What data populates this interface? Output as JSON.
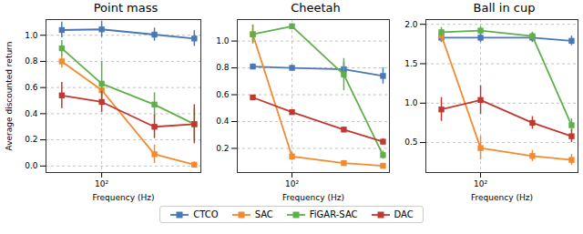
{
  "chart_data": [
    {
      "type": "line",
      "title": "Point mass",
      "x_label": "Frequency (Hz)",
      "y_label": "Average discounted return",
      "log": "x",
      "grid": true,
      "marker": "square",
      "legend": "bottom",
      "x": [
        50,
        100,
        250,
        500
      ],
      "xlim": [
        38,
        560
      ],
      "xticks": [
        {
          "value": 100,
          "label": "10²"
        }
      ],
      "ylim": [
        -0.05,
        1.12
      ],
      "yticks": [
        {
          "value": 0,
          "label": "0.0"
        },
        {
          "value": 0.2,
          "label": "0.2"
        },
        {
          "value": 0.4,
          "label": "0.4"
        },
        {
          "value": 0.6,
          "label": "0.6"
        },
        {
          "value": 0.8,
          "label": "0.8"
        },
        {
          "value": 1,
          "label": "1.0"
        }
      ],
      "series": [
        {
          "name": "CTCO",
          "color": "#4878b8",
          "values": [
            1.04,
            1.045,
            1.005,
            0.975
          ],
          "errors": [
            0.06,
            0.06,
            0.05,
            0.06
          ]
        },
        {
          "name": "SAC",
          "color": "#f28a30",
          "values": [
            0.8,
            0.58,
            0.09,
            0.01
          ],
          "errors": [
            0.05,
            0.05,
            0.07,
            0.02
          ]
        },
        {
          "name": "FiGAR-SAC",
          "color": "#5fb04a",
          "values": [
            0.9,
            0.63,
            0.47,
            0.32
          ],
          "errors": [
            0.06,
            0.17,
            0.09,
            0.12
          ]
        },
        {
          "name": "DAC",
          "color": "#c03830",
          "values": [
            0.54,
            0.49,
            0.3,
            0.32
          ],
          "errors": [
            0.1,
            0.08,
            0.09,
            0.15
          ]
        }
      ]
    },
    {
      "type": "line",
      "title": "Cheetah",
      "x_label": "Frequency (Hz)",
      "log": "x",
      "grid": true,
      "marker": "square",
      "x": [
        50,
        100,
        250,
        500
      ],
      "xlim": [
        38,
        560
      ],
      "xticks": [
        {
          "value": 100,
          "label": "10²"
        }
      ],
      "ylim": [
        0.02,
        1.16
      ],
      "yticks": [
        {
          "value": 0.2,
          "label": "0.2"
        },
        {
          "value": 0.4,
          "label": "0.4"
        },
        {
          "value": 0.6,
          "label": "0.6"
        },
        {
          "value": 0.8,
          "label": "0.8"
        },
        {
          "value": 1,
          "label": "1.0"
        }
      ],
      "series": [
        {
          "name": "CTCO",
          "color": "#4878b8",
          "values": [
            0.81,
            0.8,
            0.79,
            0.74
          ],
          "errors": [
            0.02,
            0.02,
            0.05,
            0.06
          ]
        },
        {
          "name": "SAC",
          "color": "#f28a30",
          "values": [
            1.05,
            0.14,
            0.09,
            0.07
          ],
          "errors": [
            0.07,
            0.03,
            0.02,
            0.02
          ]
        },
        {
          "name": "FiGAR-SAC",
          "color": "#5fb04a",
          "values": [
            1.05,
            1.11,
            0.75,
            0.15
          ],
          "errors": [
            0.07,
            0.02,
            0.12,
            0.03
          ]
        },
        {
          "name": "DAC",
          "color": "#c03830",
          "values": [
            0.58,
            0.47,
            0.34,
            0.25
          ],
          "errors": [
            0.01,
            0.01,
            0.02,
            0.02
          ]
        }
      ]
    },
    {
      "type": "line",
      "title": "Ball in cup",
      "x_label": "Frequency (Hz)",
      "log": "x",
      "grid": true,
      "marker": "square",
      "x": [
        50,
        100,
        250,
        500
      ],
      "xlim": [
        38,
        560
      ],
      "xticks": [
        {
          "value": 100,
          "label": "10²"
        }
      ],
      "ylim": [
        0.12,
        2.06
      ],
      "yticks": [
        {
          "value": 0.5,
          "label": "0.5"
        },
        {
          "value": 1,
          "label": "1.0"
        },
        {
          "value": 1.5,
          "label": "1.5"
        },
        {
          "value": 2,
          "label": "2.0"
        }
      ],
      "series": [
        {
          "name": "CTCO",
          "color": "#4878b8",
          "values": [
            1.83,
            1.83,
            1.83,
            1.79
          ],
          "errors": [
            0.06,
            0.06,
            0.06,
            0.06
          ]
        },
        {
          "name": "SAC",
          "color": "#f28a30",
          "values": [
            1.86,
            0.43,
            0.33,
            0.28
          ],
          "errors": [
            0.07,
            0.15,
            0.07,
            0.07
          ]
        },
        {
          "name": "FiGAR-SAC",
          "color": "#5fb04a",
          "values": [
            1.9,
            1.92,
            1.85,
            0.72
          ],
          "errors": [
            0.06,
            0.05,
            0.05,
            0.08
          ]
        },
        {
          "name": "DAC",
          "color": "#c03830",
          "values": [
            0.92,
            1.04,
            0.75,
            0.58
          ],
          "errors": [
            0.15,
            0.18,
            0.08,
            0.08
          ]
        }
      ]
    }
  ]
}
